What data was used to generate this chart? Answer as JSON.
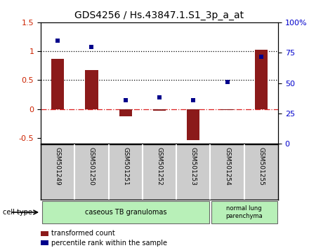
{
  "title": "GDS4256 / Hs.43847.1.S1_3p_a_at",
  "samples": [
    "GSM501249",
    "GSM501250",
    "GSM501251",
    "GSM501252",
    "GSM501253",
    "GSM501254",
    "GSM501255"
  ],
  "transformed_count": [
    0.87,
    0.67,
    -0.12,
    -0.03,
    -0.54,
    -0.02,
    1.03
  ],
  "percentile_rank": [
    1.18,
    1.08,
    0.15,
    0.2,
    0.16,
    0.47,
    0.9
  ],
  "ylim_left": [
    -0.6,
    1.5
  ],
  "ylim_right": [
    0,
    100
  ],
  "yticks_left": [
    -0.5,
    0.0,
    0.5,
    1.0,
    1.5
  ],
  "ytick_labels_left": [
    "-0.5",
    "0",
    "0.5",
    "1",
    "1.5"
  ],
  "ytick_labels_right": [
    "0",
    "25",
    "50",
    "75",
    "100%"
  ],
  "hlines": [
    0.0,
    0.5,
    1.0
  ],
  "hline_styles": [
    "-.",
    ":",
    ":"
  ],
  "hline_colors": [
    "#dd2222",
    "black",
    "black"
  ],
  "bar_color": "#8B1A1A",
  "dot_color": "#00008B",
  "bar_width": 0.38,
  "dot_size": 5,
  "group1_n": 5,
  "group1_label": "caseous TB granulomas",
  "group2_n": 2,
  "group2_label": "normal lung\nparenchyma",
  "group_color": "#b8f0b8",
  "sample_box_color": "#cccccc",
  "cell_type_label": "cell type",
  "legend_bar_label": "transformed count",
  "legend_dot_label": "percentile rank within the sample",
  "ylabel_left_color": "#cc2200",
  "ylabel_right_color": "#0000cc",
  "title_fontsize": 10,
  "tick_fontsize": 8,
  "sample_fontsize": 6.5,
  "group_fontsize": 7,
  "legend_fontsize": 7
}
